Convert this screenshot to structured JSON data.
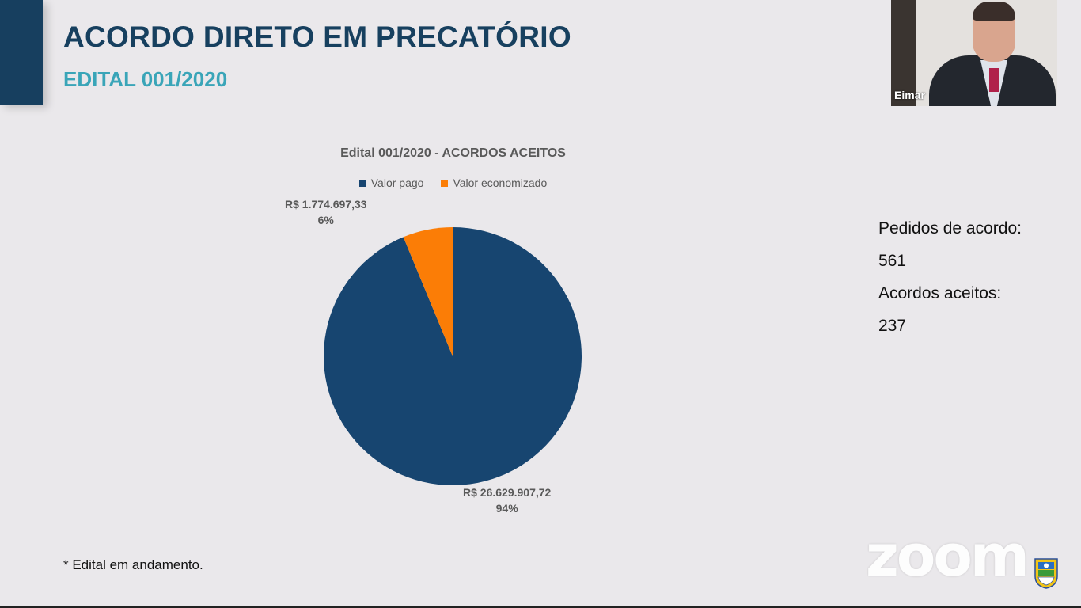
{
  "slide": {
    "title": "ACORDO DIRETO EM PRECATÓRIO",
    "subtitle": "EDITAL 001/2020",
    "footnote": "* Edital em andamento."
  },
  "stats": {
    "requests_label": "Pedidos de acordo:",
    "requests_value": "561",
    "accepted_label": "Acordos aceitos:",
    "accepted_value": "237"
  },
  "participant": {
    "name": "Eimar"
  },
  "watermark": {
    "text": "zoom"
  },
  "colors": {
    "primary": "#17405f",
    "accent": "#3aa5b8",
    "slice_paid": "#174570",
    "slice_saved": "#fb7d06"
  },
  "chart_data": {
    "type": "pie",
    "title": "Edital 001/2020 - ACORDOS ACEITOS",
    "series": [
      {
        "name": "Valor pago",
        "value": 26629907.72,
        "value_label": "R$ 26.629.907,72",
        "percent_label": "94%",
        "color": "#174570"
      },
      {
        "name": "Valor economizado",
        "value": 1774697.33,
        "value_label": "R$ 1.774.697,33",
        "percent_label": "6%",
        "color": "#fb7d06"
      }
    ],
    "legend_position": "top"
  }
}
